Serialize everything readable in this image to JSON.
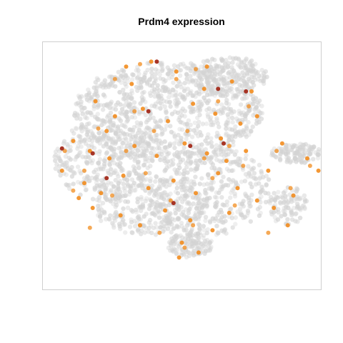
{
  "chart_data": {
    "type": "scatter",
    "title": "Prdm4 expression",
    "xlabel": "",
    "ylabel": "",
    "xlim": [
      -50,
      50
    ],
    "ylim": [
      -50,
      50
    ],
    "grid": false,
    "legend": "none",
    "colors": {
      "background_cells": "#d3d3d3",
      "expression_mid": "#f28c1e",
      "expression_high": "#a32a1a",
      "frame": "#cfcfcf"
    },
    "series": [
      {
        "values": [
          {
            "x": -20,
            "y": 40
          },
          {
            "x": -11,
            "y": 42
          },
          {
            "x": -2,
            "y": 38
          },
          {
            "x": 9,
            "y": 40
          },
          {
            "x": 18,
            "y": 34
          },
          {
            "x": 25,
            "y": 30
          },
          {
            "x": -31,
            "y": 26
          },
          {
            "x": -24,
            "y": 20
          },
          {
            "x": -14,
            "y": 23
          },
          {
            "x": -5,
            "y": 18
          },
          {
            "x": 4,
            "y": 25
          },
          {
            "x": 12,
            "y": 21
          },
          {
            "x": 21,
            "y": 17
          },
          {
            "x": 27,
            "y": 20
          },
          {
            "x": -39,
            "y": 10
          },
          {
            "x": -33,
            "y": 6
          },
          {
            "x": -26,
            "y": 3
          },
          {
            "x": -17,
            "y": 8
          },
          {
            "x": -9,
            "y": 4
          },
          {
            "x": 1,
            "y": 9
          },
          {
            "x": 9,
            "y": 5
          },
          {
            "x": 16,
            "y": 2
          },
          {
            "x": 23,
            "y": 6
          },
          {
            "x": -43,
            "y": -2
          },
          {
            "x": -35,
            "y": -7
          },
          {
            "x": -29,
            "y": -11
          },
          {
            "x": -21,
            "y": -4
          },
          {
            "x": -12,
            "y": -9
          },
          {
            "x": -3,
            "y": -6
          },
          {
            "x": 5,
            "y": -11
          },
          {
            "x": 13,
            "y": -3
          },
          {
            "x": 20,
            "y": -9
          },
          {
            "x": -32,
            "y": -17
          },
          {
            "x": -22,
            "y": -20
          },
          {
            "x": -15,
            "y": -24
          },
          {
            "x": -6,
            "y": -18
          },
          {
            "x": 3,
            "y": -22
          },
          {
            "x": 11,
            "y": -26
          },
          {
            "x": 17,
            "y": -19
          },
          {
            "x": 27,
            "y": -14
          },
          {
            "x": 31,
            "y": -2
          },
          {
            "x": 36,
            "y": 9
          },
          {
            "x": 45,
            "y": 3
          },
          {
            "x": 49,
            "y": -2
          },
          {
            "x": 40,
            "y": -12
          },
          {
            "x": 33,
            "y": -17
          },
          {
            "x": 38,
            "y": -24
          },
          {
            "x": 0,
            "y": -31
          },
          {
            "x": 6,
            "y": -35
          },
          {
            "x": -1,
            "y": -37
          },
          {
            "x": -18,
            "y": 33
          },
          {
            "x": -27,
            "y": 14
          },
          {
            "x": -37,
            "y": -13
          },
          {
            "x": 8,
            "y": 31
          },
          {
            "x": 14,
            "y": 11
          }
        ]
      },
      {
        "values": [
          {
            "x": -15,
            "y": 41
          },
          {
            "x": -2,
            "y": 35
          },
          {
            "x": 13,
            "y": 26
          },
          {
            "x": 24,
            "y": 24
          },
          {
            "x": -30,
            "y": 15
          },
          {
            "x": -10,
            "y": 14
          },
          {
            "x": 2,
            "y": 14
          },
          {
            "x": -42,
            "y": 6
          },
          {
            "x": -20,
            "y": 6
          },
          {
            "x": 8,
            "y": 3
          },
          {
            "x": 17,
            "y": 8
          },
          {
            "x": -35,
            "y": -2
          },
          {
            "x": -13,
            "y": -3
          },
          {
            "x": 11,
            "y": -5
          },
          {
            "x": -25,
            "y": -12
          },
          {
            "x": -4,
            "y": -14
          },
          {
            "x": 19,
            "y": -16
          },
          {
            "x": -33,
            "y": -25
          },
          {
            "x": -8,
            "y": -27
          },
          {
            "x": 4,
            "y": -24
          },
          {
            "x": 34,
            "y": 6
          },
          {
            "x": 46,
            "y": 0
          },
          {
            "x": 39,
            "y": -9
          },
          {
            "x": 31,
            "y": -27
          },
          {
            "x": 1,
            "y": -33
          },
          {
            "x": -24,
            "y": 35
          },
          {
            "x": 5,
            "y": 39
          },
          {
            "x": -39,
            "y": -10
          },
          {
            "x": 22,
            "y": 0
          },
          {
            "x": -17,
            "y": 22
          }
        ]
      },
      {
        "values": [
          {
            "x": -9,
            "y": 42
          },
          {
            "x": -12,
            "y": 22
          },
          {
            "x": 13,
            "y": 31
          },
          {
            "x": -43,
            "y": 7
          },
          {
            "x": -32,
            "y": 5
          },
          {
            "x": -27,
            "y": -5
          },
          {
            "x": 3,
            "y": 8
          },
          {
            "x": 23,
            "y": 30
          },
          {
            "x": -3,
            "y": -15
          },
          {
            "x": 15,
            "y": 9
          }
        ]
      }
    ]
  }
}
